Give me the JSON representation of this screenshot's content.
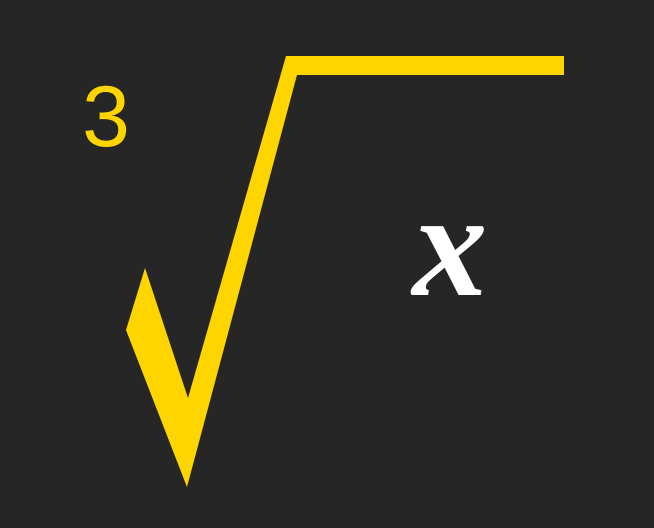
{
  "expression": {
    "root_index": "3",
    "radicand": "x"
  },
  "colors": {
    "background": "#262626",
    "radical_sign": "#ffd500",
    "root_index": "#ffd500",
    "radicand": "#ffffff"
  },
  "icons": {
    "radical_sign": "radical-sign-icon"
  }
}
